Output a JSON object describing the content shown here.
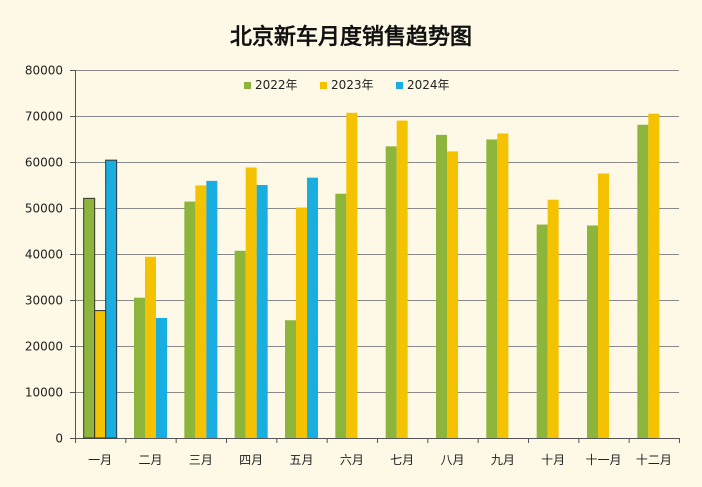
{
  "chart_data": {
    "type": "bar",
    "title": "北京新车月度销售趋势图",
    "xlabel": "",
    "ylabel": "",
    "ylim": [
      0,
      80000
    ],
    "yticks": [
      0,
      10000,
      20000,
      30000,
      40000,
      50000,
      60000,
      70000,
      80000
    ],
    "grid": true,
    "legend_position": "top-center",
    "categories": [
      "一月",
      "二月",
      "三月",
      "四月",
      "五月",
      "六月",
      "七月",
      "八月",
      "九月",
      "十月",
      "十一月",
      "十二月"
    ],
    "series": [
      {
        "name": "2022年",
        "color": "#8db53c",
        "values": [
          52100,
          30500,
          51400,
          40700,
          25600,
          53100,
          63400,
          65900,
          64900,
          46400,
          46200,
          68100
        ]
      },
      {
        "name": "2023年",
        "color": "#f5c200",
        "values": [
          27700,
          39400,
          54900,
          58800,
          50100,
          70700,
          69000,
          62300,
          66200,
          51800,
          57500,
          70500
        ]
      },
      {
        "name": "2024年",
        "color": "#1aaee0",
        "values": [
          60400,
          26100,
          55900,
          55000,
          56600,
          null,
          null,
          null,
          null,
          null,
          null,
          null
        ]
      }
    ]
  }
}
